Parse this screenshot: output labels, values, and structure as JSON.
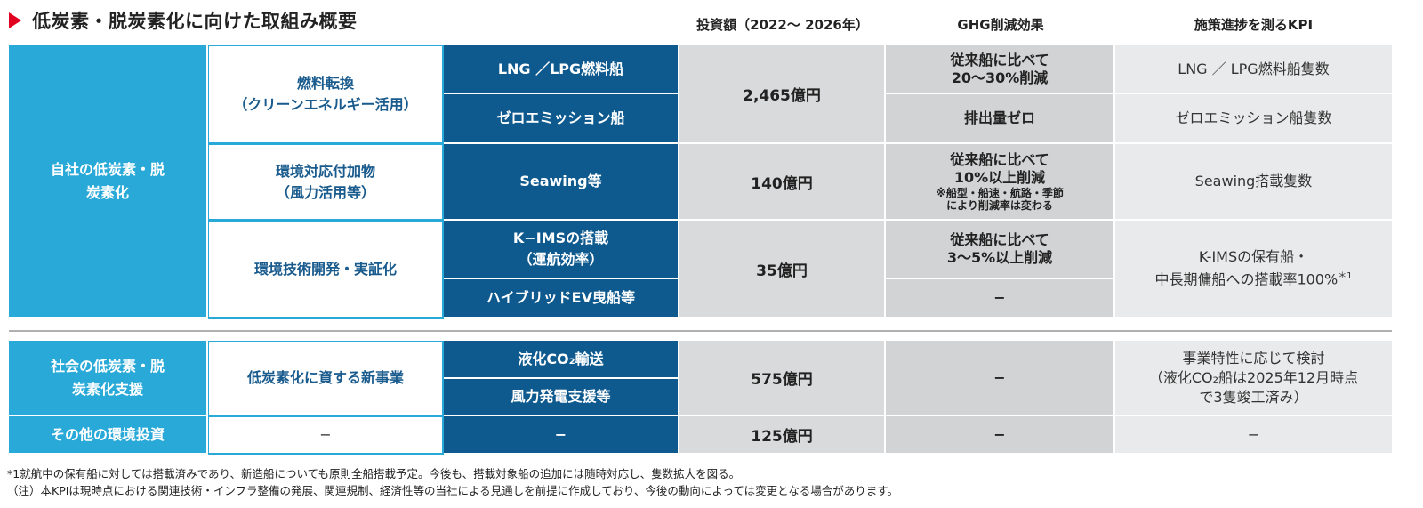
{
  "title": "低炭素・脱炭素化に向けた取組み概要",
  "headers": {
    "investment": "投資額（2022～ 2026年）",
    "ghg": "GHG削減効果",
    "kpi": "施策進捗を測るKPI"
  },
  "section1": {
    "category": "自社の低炭素・脱炭素化",
    "fuel": {
      "sub": "燃料転換\n（クリーンエネルギー活用）",
      "investment": "2,465億円",
      "lng": {
        "measure": "LNG ／LPG燃料船",
        "ghg": "従来船に比べて\n20～30%削減",
        "kpi": "LNG ／ LPG燃料船隻数"
      },
      "zero": {
        "measure": "ゼロエミッション船",
        "ghg": "排出量ゼロ",
        "kpi": "ゼロエミッション船隻数"
      }
    },
    "env_add": {
      "sub": "環境対応付加物\n（風力活用等）",
      "measure": "Seawing等",
      "investment": "140億円",
      "ghg": "従来船に比べて\n10%以上削減",
      "ghg_note": "※船型・船速・航路・季節\nにより削減率は変わる",
      "kpi": "Seawing搭載隻数"
    },
    "tech": {
      "sub": "環境技術開発・実証化",
      "investment": "35億円",
      "kims": {
        "measure": "K−IMSの搭載\n（運航効率）",
        "ghg": "従来船に比べて\n3～5%以上削減"
      },
      "hybrid": {
        "measure": "ハイブリッドEV曳船等",
        "ghg": "−"
      },
      "kpi": "K-IMSの保有船・\n中長期傭船への搭載率100%",
      "kpi_sup": "＊1"
    }
  },
  "section2": {
    "category": "社会の低炭素・脱\n炭素化支援",
    "sub": "低炭素化に資する新事業",
    "measure1": "液化CO₂輸送",
    "measure2": "風力発電支援等",
    "investment": "575億円",
    "ghg": "−",
    "kpi": "事業特性に応じて検討\n（液化CO₂船は2025年12月時点\nで3隻竣工済み）"
  },
  "section3": {
    "category": "その他の環境投資",
    "sub": "−",
    "measure": "−",
    "investment": "125億円",
    "ghg": "−",
    "kpi": "−"
  },
  "footnotes": {
    "note1": "*1就航中の保有船に対しては搭載済みであり、新造船についても原則全船搭載予定。今後も、搭載対象船の追加には随時対応し、隻数拡大を図る。",
    "note2": "（注）本KPIは現時点における関連技術・インフラ整備の発展、関連規制、経済性等の当社による見通しを前提に作成しており、今後の動向によっては変更となる場合があります。"
  },
  "colors": {
    "accent_red": "#e1001f",
    "category_blue": "#29a9d8",
    "measure_navy": "#0e5a8f",
    "investment_gray": "#d9dadb",
    "kpi_gray": "#e9eaeb"
  }
}
